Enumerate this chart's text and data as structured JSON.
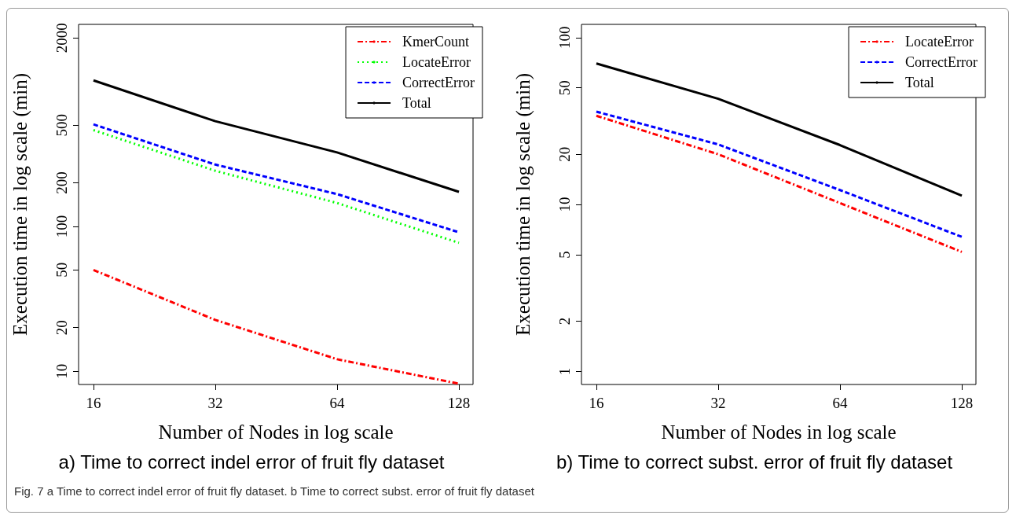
{
  "chart_data": [
    {
      "type": "line",
      "title": "a) Time to correct indel error of fruit fly dataset",
      "xlabel": "Number of Nodes in log scale",
      "ylabel": "Execution time in log scale (min)",
      "x": [
        16,
        32,
        64,
        128
      ],
      "log": "xy",
      "xlim": [
        14.7,
        138.7
      ],
      "xticks": [
        16,
        32,
        64,
        128
      ],
      "ylim": [
        8.1,
        2480
      ],
      "yticks": [
        10,
        20,
        50,
        100,
        200,
        500,
        2000
      ],
      "series": [
        {
          "name": "KmerCount",
          "color": "#ff0000",
          "line_style": "dashdot",
          "values": [
            50,
            22.6,
            12.1,
            8.2
          ]
        },
        {
          "name": "LocateError",
          "color": "#00ff00",
          "line_style": "dotted",
          "values": [
            462,
            242,
            145,
            77
          ]
        },
        {
          "name": "CorrectError",
          "color": "#0000ff",
          "line_style": "dashed",
          "values": [
            506,
            267,
            167,
            91
          ]
        },
        {
          "name": "Total",
          "color": "#000000",
          "line_style": "solid",
          "values": [
            1018,
            532,
            324,
            173
          ]
        }
      ],
      "legend": "top right",
      "grid": false,
      "marker": "none",
      "annotations": [
        "Fig. 7 a Time to correct indel error of fruit fly dataset. b Time to correct subst. error of fruit fly dataset"
      ]
    },
    {
      "type": "line",
      "title": "b) Time to correct subst. error of fruit fly dataset",
      "xlabel": "Number of Nodes in log scale",
      "ylabel": "Execution time in log scale (min)",
      "x": [
        16,
        32,
        64,
        128
      ],
      "log": "xy",
      "xlim": [
        14.7,
        138.7
      ],
      "xticks": [
        16,
        32,
        64,
        128
      ],
      "ylim": [
        0.835,
        120
      ],
      "yticks": [
        1,
        2,
        5,
        10,
        20,
        50,
        100
      ],
      "series": [
        {
          "name": "LocateError",
          "color": "#ff0000",
          "line_style": "dashdot",
          "values": [
            34,
            20,
            10.2,
            5.2
          ]
        },
        {
          "name": "CorrectError",
          "color": "#0000ff",
          "line_style": "dashed",
          "values": [
            36,
            22.9,
            12.2,
            6.4
          ]
        },
        {
          "name": "Total",
          "color": "#000000",
          "line_style": "solid",
          "values": [
            70,
            43,
            22.7,
            11.3
          ]
        }
      ],
      "legend": "top right",
      "grid": false,
      "marker": "none"
    }
  ]
}
